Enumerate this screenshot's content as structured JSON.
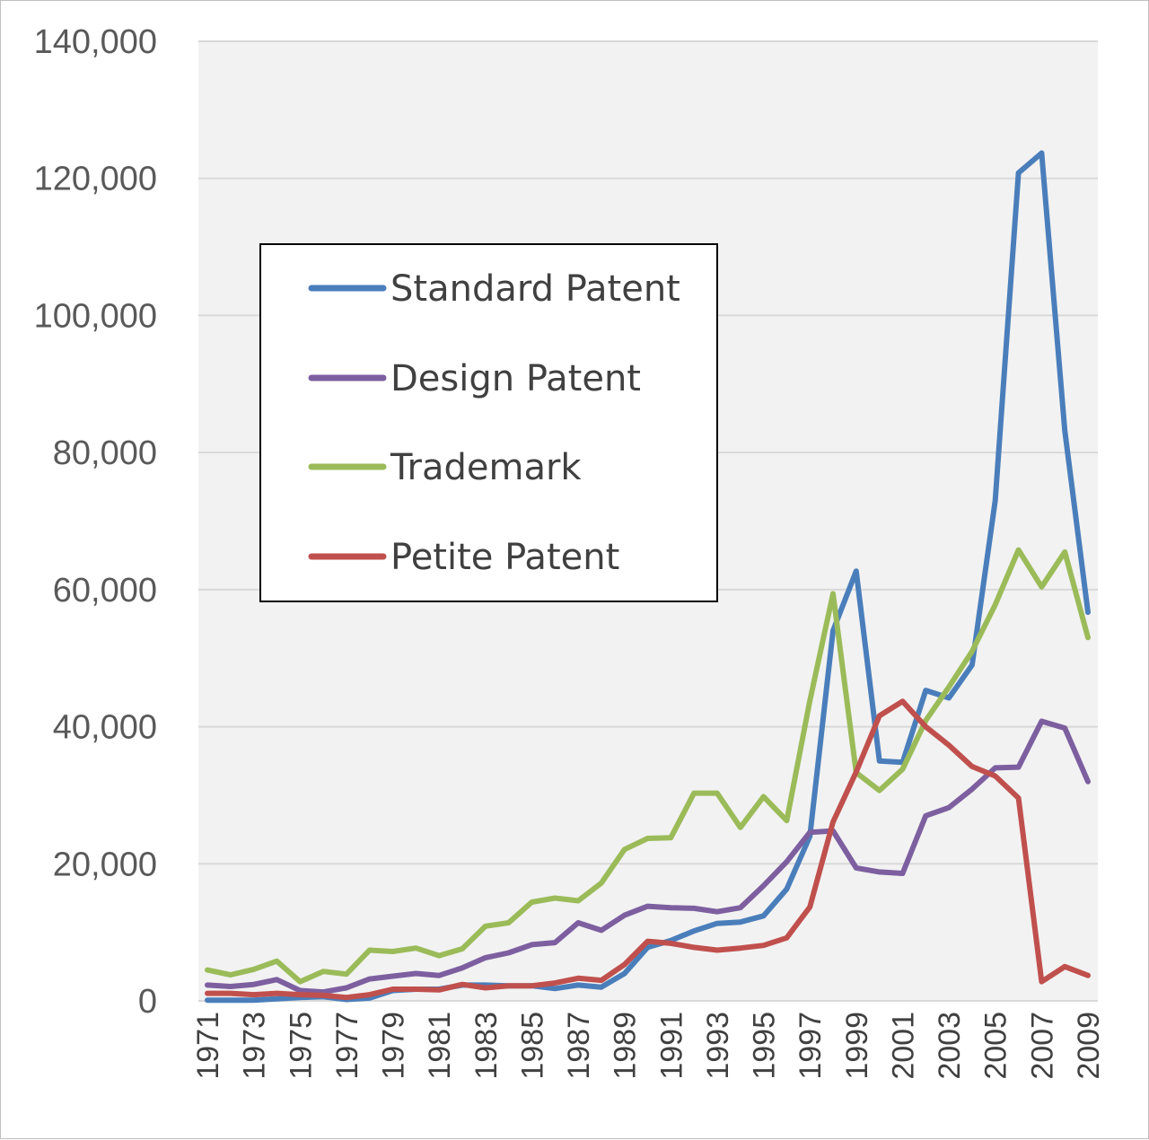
{
  "chart_data": {
    "type": "line",
    "title": "",
    "xlabel": "",
    "ylabel": "",
    "ylim": [
      0,
      140000
    ],
    "yticks": [
      "0",
      "20,000",
      "40,000",
      "60,000",
      "80,000",
      "100,000",
      "120,000",
      "140,000"
    ],
    "ytick_values": [
      0,
      20000,
      40000,
      60000,
      80000,
      100000,
      120000,
      140000
    ],
    "x": [
      1971,
      1972,
      1973,
      1974,
      1975,
      1976,
      1977,
      1978,
      1979,
      1980,
      1981,
      1982,
      1983,
      1984,
      1985,
      1986,
      1987,
      1988,
      1989,
      1990,
      1991,
      1992,
      1993,
      1994,
      1995,
      1996,
      1997,
      1998,
      1999,
      2000,
      2001,
      2002,
      2003,
      2004,
      2005,
      2006,
      2007,
      2008,
      2009
    ],
    "xtick_labels": [
      "1971",
      "1973",
      "1975",
      "1977",
      "1979",
      "1981",
      "1983",
      "1985",
      "1987",
      "1989",
      "1991",
      "1993",
      "1995",
      "1997",
      "1999",
      "2001",
      "2003",
      "2005",
      "2007",
      "2009"
    ],
    "xtick_years": [
      1971,
      1973,
      1975,
      1977,
      1979,
      1981,
      1983,
      1985,
      1987,
      1989,
      1991,
      1993,
      1995,
      1997,
      1999,
      2001,
      2003,
      2005,
      2007,
      2009
    ],
    "grid": true,
    "background": "#f2f2f2",
    "legend_position": "upper-left",
    "series": [
      {
        "name": "Standard Patent",
        "color": "#4a7ebb",
        "values": [
          100,
          100,
          100,
          300,
          500,
          600,
          200,
          400,
          1500,
          1700,
          1700,
          2300,
          2300,
          2200,
          2200,
          1800,
          2300,
          2000,
          4000,
          7800,
          8800,
          10200,
          11300,
          11500,
          12400,
          16300,
          24000,
          54000,
          62700,
          35000,
          34800,
          45300,
          44200,
          49000,
          73000,
          120800,
          123700,
          83200,
          56700
        ]
      },
      {
        "name": "Design Patent",
        "color": "#7d5fa0",
        "values": [
          2300,
          2100,
          2400,
          3100,
          1500,
          1300,
          1900,
          3200,
          3600,
          4000,
          3700,
          4800,
          6300,
          7000,
          8200,
          8500,
          11400,
          10300,
          12500,
          13800,
          13600,
          13500,
          13000,
          13600,
          16800,
          20300,
          24600,
          24800,
          19400,
          18800,
          18600,
          27000,
          28200,
          30900,
          34000,
          34100,
          40800,
          39800,
          32000
        ]
      },
      {
        "name": "Trademark",
        "color": "#9bbb59",
        "values": [
          4500,
          3800,
          4600,
          5800,
          2800,
          4300,
          3900,
          7400,
          7200,
          7700,
          6600,
          7600,
          10900,
          11400,
          14400,
          15000,
          14600,
          17200,
          22100,
          23700,
          23800,
          30300,
          30300,
          25300,
          29800,
          26300,
          43800,
          59400,
          33300,
          30700,
          33800,
          40900,
          45800,
          51000,
          57800,
          65800,
          60400,
          65500,
          53000
        ]
      },
      {
        "name": "Petite Patent",
        "color": "#c0504d",
        "values": [
          1100,
          1100,
          900,
          1100,
          900,
          800,
          500,
          900,
          1700,
          1700,
          1600,
          2400,
          1900,
          2200,
          2200,
          2600,
          3300,
          3000,
          5300,
          8700,
          8400,
          7800,
          7400,
          7700,
          8100,
          9200,
          13700,
          26100,
          33400,
          41600,
          43700,
          40000,
          37300,
          34200,
          32800,
          29600,
          2800,
          5000,
          3700
        ]
      }
    ]
  }
}
